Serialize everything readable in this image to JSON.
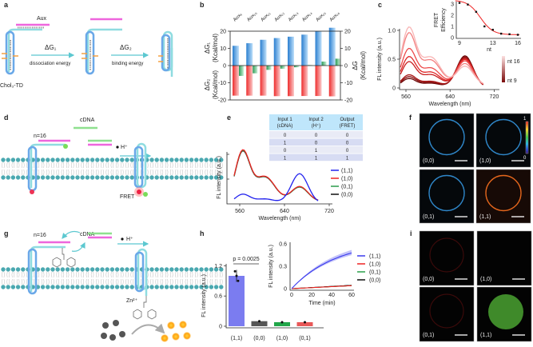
{
  "panels": {
    "a": {
      "label": "a",
      "aux": "Aux",
      "dg1": "ΔG₁",
      "dg1_desc": "dissociation energy",
      "dg2": "ΔG₂",
      "dg2_desc": "binding energy",
      "probe": "Chol₃-TD"
    },
    "d": {
      "label": "d",
      "cdna": "cDNA",
      "n": "n=16",
      "proton": "H⁺",
      "fret": "FRET"
    },
    "g": {
      "label": "g",
      "cdna": "cDNA",
      "n": "n=16",
      "proton": "H⁺",
      "zinc": "Zn²⁺"
    },
    "f": {
      "label": "f",
      "colorbar_max": "1",
      "colorbar_min": "0",
      "images": [
        {
          "label": "(0,0)",
          "ring": "#2f86c8",
          "bg": "#05080b"
        },
        {
          "label": "(1,0)",
          "ring": "#2f86c8",
          "bg": "#05080b"
        },
        {
          "label": "(0,1)",
          "ring": "#2f86c8",
          "bg": "#05080b"
        },
        {
          "label": "(1,1)",
          "ring": "#e4661c",
          "bg": "#170a06"
        }
      ]
    },
    "i": {
      "label": "i",
      "images": [
        {
          "label": "(0,0)",
          "content": "faint-red-ring"
        },
        {
          "label": "(1,0)",
          "content": "none"
        },
        {
          "label": "(0,1)",
          "content": "faint-red-ring"
        },
        {
          "label": "(1,1)",
          "content": "green-disk"
        }
      ]
    },
    "e_table": {
      "headers": [
        [
          "Input 1",
          "(cDNA)"
        ],
        [
          "Input 2",
          "(H⁺)"
        ],
        [
          "Output",
          "(FRET)"
        ]
      ],
      "rows": [
        [
          "0",
          "0",
          "0"
        ],
        [
          "1",
          "0",
          "0"
        ],
        [
          "0",
          "1",
          "0"
        ],
        [
          "1",
          "1",
          "1"
        ]
      ]
    }
  },
  "chart_data": [
    {
      "id": "b",
      "label": "b",
      "type": "bar",
      "categories": [
        "Aux₉",
        "Aux₁₀",
        "Aux₁₁",
        "Aux₁₂",
        "Aux₁₃",
        "Aux₁₄",
        "Aux₁₅",
        "Aux₁₆"
      ],
      "series": [
        {
          "name": "ΔG₁",
          "color": "#3a8fd8",
          "values": [
            11.5,
            13,
            15,
            16,
            16.8,
            18,
            20,
            22
          ]
        },
        {
          "name": "ΔG₂",
          "color": "#ef3c3c",
          "values": [
            -17.5,
            -17.5,
            -17.5,
            -17.8,
            -17.8,
            -17.7,
            -17.7,
            -17.9
          ]
        },
        {
          "name": "ΔG",
          "color": "#3aa866",
          "values": [
            -6,
            -4.5,
            -2.5,
            -1.8,
            -1,
            0.3,
            2.3,
            4
          ]
        }
      ],
      "ylabel_top": [
        "ΔG₁",
        "(Kcal/mol)"
      ],
      "ylabel_bottom": [
        "ΔG₂",
        "(Kcal/mol)"
      ],
      "ylabel_right": [
        "ΔG",
        "(Kcal/mol)"
      ],
      "yticks": [
        "20",
        "10",
        "0",
        "-10",
        "-20"
      ],
      "ylim": [
        -20,
        20
      ]
    },
    {
      "id": "c",
      "label": "c",
      "type": "line",
      "xlabel": "Wavelength (nm)",
      "ylabel": "FL intensity (a.u.)",
      "xticks": [
        "560",
        "640",
        "720"
      ],
      "yticks": [
        "1.0",
        "0.5",
        "0"
      ],
      "xlim": [
        545,
        725
      ],
      "ylim": [
        0,
        1
      ],
      "legend": {
        "top": "nt 16",
        "bottom": "nt 9"
      },
      "series": [
        {
          "name": "nt 9",
          "color": "#6e0a0a",
          "donor": 0.15,
          "acceptor": 0.55
        },
        {
          "name": "nt 10",
          "color": "#8a1010",
          "donor": 0.18,
          "acceptor": 0.53
        },
        {
          "name": "nt 11",
          "color": "#a81616",
          "donor": 0.21,
          "acceptor": 0.51
        },
        {
          "name": "nt 12",
          "color": "#c81e1e",
          "donor": 0.42,
          "acceptor": 0.49
        },
        {
          "name": "nt 13",
          "color": "#e02828",
          "donor": 0.5,
          "acceptor": 0.47
        },
        {
          "name": "nt 14",
          "color": "#ec4a4a",
          "donor": 0.63,
          "acceptor": 0.44
        },
        {
          "name": "nt 15",
          "color": "#f38080",
          "donor": 0.88,
          "acceptor": 0.38
        },
        {
          "name": "nt 16",
          "color": "#f8b4b4",
          "donor": 0.97,
          "acceptor": 0.33
        }
      ],
      "inset": {
        "type": "scatter",
        "xlabel": "nt",
        "ylabel": [
          "FRET",
          "Efficiency"
        ],
        "xticks": [
          "9",
          "13",
          "16"
        ],
        "yticks": [
          "3",
          "2",
          "1",
          "0"
        ],
        "x": [
          9,
          10,
          11,
          12,
          13,
          14,
          15,
          16
        ],
        "y": [
          3.1,
          2.95,
          2.3,
          1.0,
          0.7,
          0.35,
          0.3,
          0.25
        ],
        "fit_color": "#ee2222"
      }
    },
    {
      "id": "e",
      "label": "e",
      "type": "line",
      "xlabel": "Wavelength (nm)",
      "ylabel": "FL intensity (a.u.)",
      "xticks": [
        "560",
        "640",
        "720"
      ],
      "xlim": [
        545,
        725
      ],
      "ylim": [
        0,
        1
      ],
      "series": [
        {
          "name": "(1,1)",
          "color": "#2222ee",
          "donor": 0.18,
          "acceptor": 0.6
        },
        {
          "name": "(1,0)",
          "color": "#ee2222",
          "donor": 1.0,
          "acceptor": 0.3
        },
        {
          "name": "(0,1)",
          "color": "#2a9a4a",
          "donor": 0.99,
          "acceptor": 0.29
        },
        {
          "name": "(0,0)",
          "color": "#111111",
          "donor": 0.98,
          "acceptor": 0.29
        }
      ]
    },
    {
      "id": "h",
      "label": "h",
      "type": "bar",
      "categories": [
        "(1,1)",
        "(0,0)",
        "(1,0)",
        "(0,1)"
      ],
      "values": [
        1.0,
        0.1,
        0.08,
        0.08
      ],
      "errors": [
        0.12,
        0.01,
        0.01,
        0.01
      ],
      "colors": [
        "#7b7cf0",
        "#555555",
        "#22a64a",
        "#e85858"
      ],
      "ylabel": "FL intensity (a.u.)",
      "yticks": [
        "1.2",
        "0.6",
        "0"
      ],
      "ylim": [
        0,
        1.2
      ],
      "annotation": "p = 0.0025",
      "inset": {
        "type": "line",
        "xlabel": "Time (min)",
        "ylabel": "FL intensity (a.u.)",
        "xticks": [
          "0",
          "20",
          "40",
          "60"
        ],
        "yticks": [
          "0.6",
          "0.3",
          "0"
        ],
        "xlim": [
          0,
          60
        ],
        "ylim": [
          0,
          0.6
        ],
        "series": [
          {
            "name": "(1,1)",
            "color": "#3a3aee",
            "end": 0.48
          },
          {
            "name": "(1,0)",
            "color": "#ee2222",
            "end": 0.04
          },
          {
            "name": "(0,1)",
            "color": "#2aa04a",
            "end": 0.04
          },
          {
            "name": "(0,0)",
            "color": "#111111",
            "end": 0.045
          }
        ]
      }
    }
  ]
}
